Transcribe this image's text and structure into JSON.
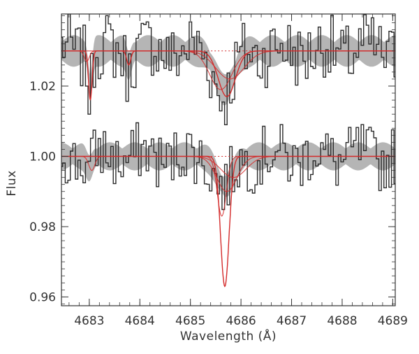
{
  "chart_data": {
    "type": "line",
    "xlabel": "Wavelength (Å)",
    "ylabel": "Flux",
    "xlim": [
      4682.45,
      4689.05
    ],
    "ylim": [
      0.9575,
      1.0405
    ],
    "x_ticks": [
      4683,
      4684,
      4685,
      4686,
      4687,
      4688,
      4689
    ],
    "x_tick_labels": [
      "4683",
      "4684",
      "4685",
      "4686",
      "4687",
      "4688",
      "4689"
    ],
    "y_ticks": [
      0.96,
      0.98,
      1.0,
      1.02
    ],
    "y_tick_labels": [
      "0.96",
      "0.98",
      "1.00",
      "1.02"
    ],
    "grid": false,
    "legend": "none",
    "colors": {
      "observed": "#2a2a2a",
      "band": "#b5b5b5",
      "model": "#d42a2a",
      "axes": "#333333"
    },
    "spectra": [
      {
        "offset": 1.03,
        "noise_amplitude": 0.0095,
        "band_halfwidth": 0.0045,
        "observed_lines": [
          {
            "center": 4683.02,
            "depth": 0.012,
            "width": 0.04
          },
          {
            "center": 4683.78,
            "depth": 0.005,
            "width": 0.05
          },
          {
            "center": 4685.68,
            "depth": 0.013,
            "width": 0.18
          }
        ],
        "models": [
          {
            "name": "",
            "lines": [
              {
                "center": 4683.02,
                "depth": 0.014,
                "width": 0.035
              },
              {
                "center": 4683.78,
                "depth": 0.004,
                "width": 0.04
              },
              {
                "center": 4685.72,
                "depth": 0.013,
                "width": 0.17
              }
            ]
          },
          {
            "name": "",
            "lines": [
              {
                "center": 4682.95,
                "depth": 0.003,
                "width": 0.05
              },
              {
                "center": 4685.6,
                "depth": 0.011,
                "width": 0.22
              }
            ]
          },
          {
            "name": "",
            "lines": [
              {
                "center": 4685.78,
                "depth": 0.008,
                "width": 0.28
              }
            ]
          }
        ]
      },
      {
        "offset": 1.0,
        "noise_amplitude": 0.0085,
        "band_halfwidth": 0.004,
        "observed_lines": [
          {
            "center": 4685.68,
            "depth": 0.01,
            "width": 0.16
          },
          {
            "center": 4683.0,
            "depth": 0.004,
            "width": 0.06
          }
        ],
        "models": [
          {
            "name": "",
            "lines": [
              {
                "center": 4685.68,
                "depth": 0.037,
                "width": 0.085
              }
            ]
          },
          {
            "name": "",
            "lines": [
              {
                "center": 4685.62,
                "depth": 0.017,
                "width": 0.09
              }
            ]
          },
          {
            "name": "",
            "lines": [
              {
                "center": 4685.72,
                "depth": 0.01,
                "width": 0.2
              },
              {
                "center": 4683.05,
                "depth": 0.004,
                "width": 0.06
              }
            ]
          },
          {
            "name": "",
            "lines": [
              {
                "center": 4685.85,
                "depth": 0.006,
                "width": 0.25
              }
            ]
          }
        ]
      }
    ]
  }
}
